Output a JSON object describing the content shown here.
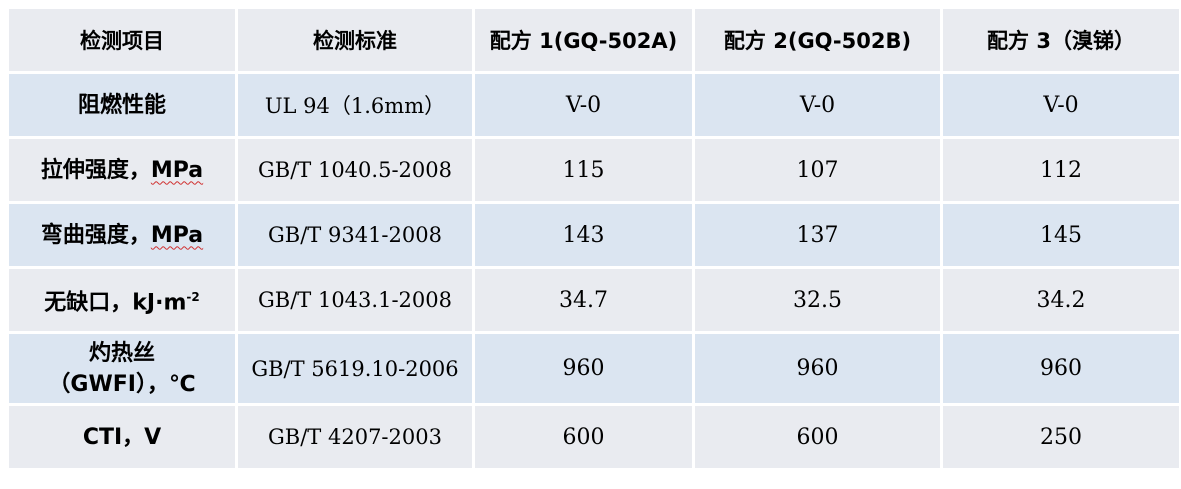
{
  "table": {
    "headers": [
      "检测项目",
      "检测标准",
      "配方 1(GQ-502A)",
      "配方 2(GQ-502B)",
      "配方 3（溴锑）"
    ],
    "rows": [
      {
        "item": "阻燃性能",
        "standard": "UL 94（1.6mm）",
        "v1": "V-0",
        "v2": "V-0",
        "v3": "V-0"
      },
      {
        "item_prefix": "拉伸强度，",
        "item_unit": "MPa",
        "standard": "GB/T 1040.5-2008",
        "v1": "115",
        "v2": "107",
        "v3": "112"
      },
      {
        "item_prefix": "弯曲强度，",
        "item_unit": "MPa",
        "standard": "GB/T 9341-2008",
        "v1": "143",
        "v2": "137",
        "v3": "145"
      },
      {
        "item_prefix": "无缺口，",
        "item_unit": "kJ·m",
        "item_sup": "-2",
        "standard": "GB/T 1043.1-2008",
        "v1": "34.7",
        "v2": "32.5",
        "v3": "34.2"
      },
      {
        "item_line1": "灼热丝",
        "item_line2": "（GWFI），℃",
        "standard": "GB/T 5619.10-2006",
        "v1": "960",
        "v2": "960",
        "v3": "960"
      },
      {
        "item": "CTI，V",
        "standard": "GB/T 4207-2003",
        "v1": "600",
        "v2": "600",
        "v3": "250"
      }
    ]
  },
  "colors": {
    "header_bg": "#e9ebf0",
    "row_blue": "#dbe5f1",
    "row_gray": "#e9ebf0"
  }
}
